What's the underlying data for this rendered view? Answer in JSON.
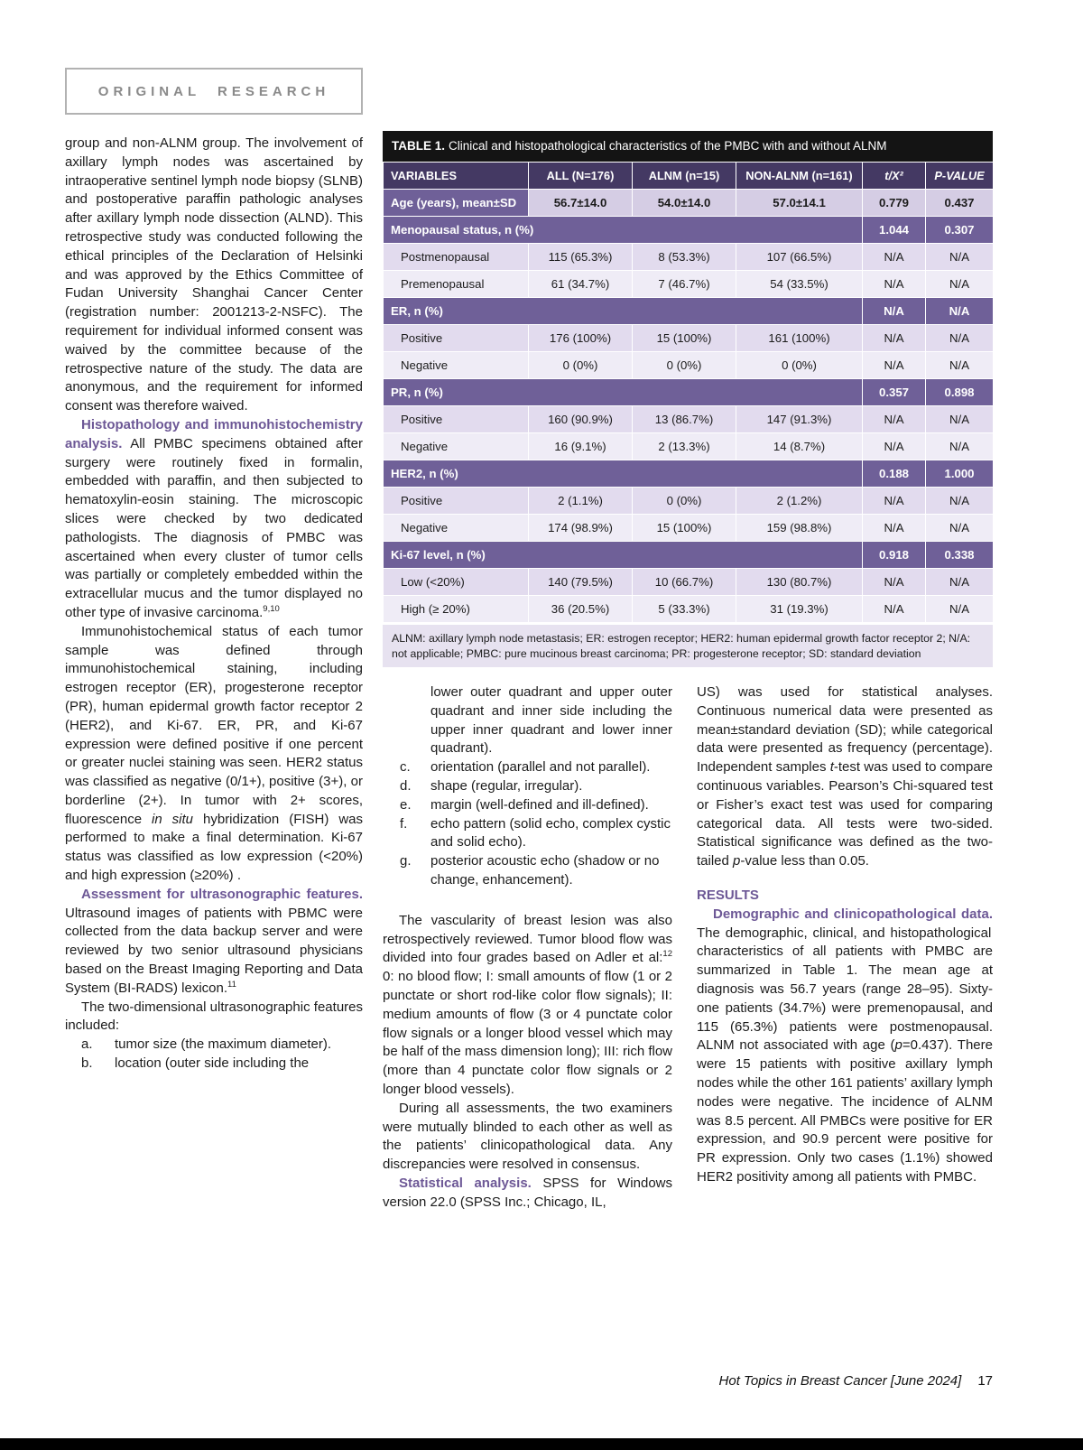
{
  "page": {
    "badge": "ORIGINAL RESEARCH",
    "footer": {
      "journal": "Hot Topics in Breast Cancer [June 2024]",
      "page_number": "17"
    }
  },
  "table": {
    "title_label": "TABLE 1.",
    "title_text": "Clinical and histopathological characteristics of the PMBC with and without ALNM",
    "headers": [
      "VARIABLES",
      "ALL (N=176)",
      "ALNM (n=15)",
      "NON-ALNM (n=161)",
      "t/X²",
      "P-VALUE"
    ],
    "rows": [
      {
        "kind": "measure",
        "label": "Age (years), mean±SD",
        "all": "56.7±14.0",
        "alnm": "54.0±14.0",
        "non": "57.0±14.1",
        "t": "0.779",
        "p": "0.437"
      },
      {
        "kind": "section",
        "label": "Menopausal status, n (%)",
        "t": "1.044",
        "p": "0.307"
      },
      {
        "kind": "data",
        "label": "Postmenopausal",
        "all": "115 (65.3%)",
        "alnm": "8 (53.3%)",
        "non": "107 (66.5%)",
        "t": "N/A",
        "p": "N/A"
      },
      {
        "kind": "data",
        "label": "Premenopausal",
        "all": "61 (34.7%)",
        "alnm": "7 (46.7%)",
        "non": "54 (33.5%)",
        "t": "N/A",
        "p": "N/A"
      },
      {
        "kind": "section",
        "label": "ER, n (%)",
        "t": "N/A",
        "p": "N/A"
      },
      {
        "kind": "data",
        "label": "Positive",
        "all": "176 (100%)",
        "alnm": "15 (100%)",
        "non": "161 (100%)",
        "t": "N/A",
        "p": "N/A"
      },
      {
        "kind": "data",
        "label": "Negative",
        "all": "0 (0%)",
        "alnm": "0 (0%)",
        "non": "0 (0%)",
        "t": "N/A",
        "p": "N/A"
      },
      {
        "kind": "section",
        "label": "PR, n (%)",
        "t": "0.357",
        "p": "0.898"
      },
      {
        "kind": "data",
        "label": "Positive",
        "all": "160 (90.9%)",
        "alnm": "13 (86.7%)",
        "non": "147 (91.3%)",
        "t": "N/A",
        "p": "N/A"
      },
      {
        "kind": "data",
        "label": "Negative",
        "all": "16 (9.1%)",
        "alnm": "2 (13.3%)",
        "non": "14 (8.7%)",
        "t": "N/A",
        "p": "N/A"
      },
      {
        "kind": "section",
        "label": "HER2, n (%)",
        "t": "0.188",
        "p": "1.000"
      },
      {
        "kind": "data",
        "label": "Positive",
        "all": "2 (1.1%)",
        "alnm": "0 (0%)",
        "non": "2 (1.2%)",
        "t": "N/A",
        "p": "N/A"
      },
      {
        "kind": "data",
        "label": "Negative",
        "all": "174 (98.9%)",
        "alnm": "15 (100%)",
        "non": "159 (98.8%)",
        "t": "N/A",
        "p": "N/A"
      },
      {
        "kind": "section",
        "label": "Ki-67 level, n (%)",
        "t": "0.918",
        "p": "0.338"
      },
      {
        "kind": "data",
        "label": "Low (<20%)",
        "all": "140 (79.5%)",
        "alnm": "10 (66.7%)",
        "non": "130 (80.7%)",
        "t": "N/A",
        "p": "N/A"
      },
      {
        "kind": "data",
        "label": "High (≥ 20%)",
        "all": "36 (20.5%)",
        "alnm": "5 (33.3%)",
        "non": "31 (19.3%)",
        "t": "N/A",
        "p": "N/A"
      }
    ],
    "footnote": "ALNM: axillary lymph node metastasis; ER: estrogen receptor; HER2: human epidermal growth factor receptor 2; N/A: not applicable; PMBC: pure mucinous breast carcinoma; PR: progesterone receptor; SD: standard deviation"
  },
  "left_column": {
    "blocks": [
      {
        "type": "p",
        "indent": false,
        "segments": [
          {
            "t": "group and non-ALNM group. The involvement of axillary lymph nodes was ascertained by intraoperative sentinel lymph node biopsy (SLNB) and postoperative paraffin pathologic analyses after axillary lymph node dissection (ALND). This retrospective study was conducted following the ethical principles of the Declaration of Helsinki and was approved by the Ethics Committee of Fudan University Shanghai Cancer Center (registration number: 2001213-2-NSFC). The requirement for individual informed consent was waived by the committee because of the retrospective nature of the study. The data are anonymous, and the requirement for informed consent was therefore waived."
          }
        ]
      },
      {
        "type": "p",
        "indent": true,
        "segments": [
          {
            "t": "Histopathology and immunohistochemistry analysis.",
            "s": "h"
          },
          {
            "t": " All PMBC specimens obtained after surgery were routinely fixed in formalin, embedded with paraffin, and then subjected to hematoxylin-eosin staining. The microscopic slices were checked by two dedicated pathologists. The diagnosis of PMBC was ascertained when every cluster of tumor cells was partially or completely embedded within the extracellular mucus and the tumor displayed no other type of invasive carcinoma."
          },
          {
            "t": "9,10",
            "s": "sup"
          }
        ]
      },
      {
        "type": "p",
        "indent": true,
        "segments": [
          {
            "t": "Immunohistochemical status of each tumor sample was defined through immunohistochemical staining, including estrogen receptor (ER), progesterone receptor (PR), human epidermal growth factor receptor 2 (HER2), and Ki-67. ER, PR, and Ki-67 expression were defined positive if one percent or greater nuclei staining was seen. HER2 status was classified as negative (0/1+), positive (3+), or borderline (2+). In tumor with 2+ scores, fluorescence "
          },
          {
            "t": "in situ",
            "s": "i"
          },
          {
            "t": " hybridization (FISH) was performed to make a final determination. Ki-67 status was classified as low expression (<20%) and high expression (≥20%) ."
          }
        ]
      },
      {
        "type": "p",
        "indent": true,
        "segments": [
          {
            "t": "Assessment for ultrasonographic features.",
            "s": "h"
          },
          {
            "t": " Ultrasound images of patients with PBMC were collected from the data backup server and were reviewed by two senior ultrasound physicians based on the Breast Imaging Reporting and Data System (BI-RADS) lexicon."
          },
          {
            "t": "11",
            "s": "sup"
          }
        ]
      },
      {
        "type": "p",
        "indent": true,
        "segments": [
          {
            "t": "The two-dimensional ultrasonographic features included:"
          }
        ]
      },
      {
        "type": "li",
        "label": "a.",
        "segments": [
          {
            "t": "tumor size (the maximum diameter)."
          }
        ]
      },
      {
        "type": "li",
        "label": "b.",
        "segments": [
          {
            "t": "location (outer side including the"
          }
        ]
      }
    ]
  },
  "middle_column": {
    "blocks": [
      {
        "type": "cont",
        "segments": [
          {
            "t": "lower outer quadrant and upper outer quadrant and inner side including the upper inner quadrant and lower inner quadrant)."
          }
        ]
      },
      {
        "type": "li",
        "label": "c.",
        "segments": [
          {
            "t": "orientation (parallel and not parallel)."
          }
        ]
      },
      {
        "type": "li",
        "label": "d.",
        "segments": [
          {
            "t": "shape (regular, irregular)."
          }
        ]
      },
      {
        "type": "li",
        "label": "e.",
        "segments": [
          {
            "t": "margin (well-defined and ill-defined)."
          }
        ]
      },
      {
        "type": "li",
        "label": "f.",
        "segments": [
          {
            "t": "echo pattern (solid echo, complex cystic and solid echo)."
          }
        ]
      },
      {
        "type": "li",
        "label": "g.",
        "segments": [
          {
            "t": "posterior acoustic echo (shadow or no change, enhancement)."
          }
        ]
      },
      {
        "type": "p",
        "indent": true,
        "gap": true,
        "segments": [
          {
            "t": "The vascularity of breast lesion was also retrospectively reviewed. Tumor blood flow was divided into four grades based on Adler et al:"
          },
          {
            "t": "12",
            "s": "sup"
          },
          {
            "t": " 0: no blood flow; I: small amounts of flow (1 or 2 punctate or short rod-like color flow signals); II: medium amounts of flow (3 or 4 punctate color flow signals or a longer blood vessel which may be half of the mass dimension long); III: rich flow (more than 4 punctate color flow signals or 2 longer blood vessels)."
          }
        ]
      },
      {
        "type": "p",
        "indent": true,
        "segments": [
          {
            "t": "During all assessments, the two examiners were mutually blinded to each other as well as the patients’ clinicopathological data. Any discrepancies were resolved in consensus."
          }
        ]
      },
      {
        "type": "p",
        "indent": true,
        "segments": [
          {
            "t": "Statistical analysis.",
            "s": "h"
          },
          {
            "t": " SPSS for Windows version 22.0 (SPSS Inc.; Chicago, IL,"
          }
        ]
      }
    ]
  },
  "right_column": {
    "blocks": [
      {
        "type": "p",
        "indent": false,
        "segments": [
          {
            "t": "US) was used for statistical analyses. Continuous numerical data were presented as mean±standard deviation (SD); while categorical data were presented as frequency (percentage). Independent samples "
          },
          {
            "t": "t",
            "s": "i"
          },
          {
            "t": "-test was used to compare continuous variables. Pearson’s Chi-squared test or Fisher’s exact test was used for comparing categorical data. All tests were two-sided. Statistical significance was defined as the two-tailed "
          },
          {
            "t": "p",
            "s": "i"
          },
          {
            "t": "-value less than 0.05."
          }
        ]
      },
      {
        "type": "heading",
        "text": "RESULTS",
        "gap": true
      },
      {
        "type": "p",
        "indent": true,
        "segments": [
          {
            "t": "Demographic and clinicopathological data.",
            "s": "h"
          },
          {
            "t": " The demographic, clinical, and histopathological characteristics of all patients with PMBC are summarized in Table 1. The mean age at diagnosis was 56.7 years (range 28–95). Sixty-one patients (34.7%) were premenopausal, and 115 (65.3%) patients were postmenopausal. ALNM not associated with age ("
          },
          {
            "t": "p",
            "s": "i"
          },
          {
            "t": "=0.437). There were 15 patients with positive axillary lymph nodes while the other 161 patients’ axillary lymph nodes were negative. The incidence of ALNM was 8.5 percent. All PMBCs were positive for ER expression, and 90.9 percent were positive for PR expression. Only two cases (1.1%) showed HER2 positivity among all patients with PMBC."
          }
        ]
      }
    ]
  }
}
